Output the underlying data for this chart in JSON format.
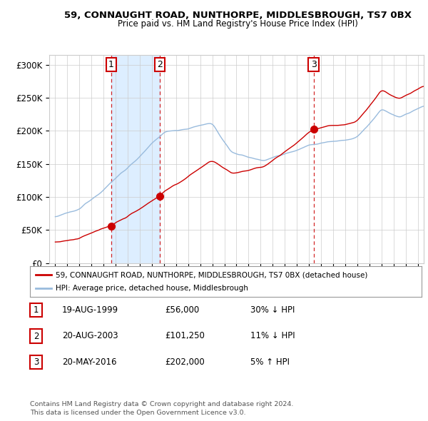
{
  "title": "59, CONNAUGHT ROAD, NUNTHORPE, MIDDLESBROUGH, TS7 0BX",
  "subtitle": "Price paid vs. HM Land Registry's House Price Index (HPI)",
  "ylabel_ticks": [
    "£0",
    "£50K",
    "£100K",
    "£150K",
    "£200K",
    "£250K",
    "£300K"
  ],
  "ytick_values": [
    0,
    50000,
    100000,
    150000,
    200000,
    250000,
    300000
  ],
  "ylim": [
    0,
    315000
  ],
  "xlim_start": 1994.5,
  "xlim_end": 2025.5,
  "sales": [
    {
      "date_num": 1999.63,
      "price": 56000,
      "label": "1"
    },
    {
      "date_num": 2003.63,
      "price": 101250,
      "label": "2"
    },
    {
      "date_num": 2016.38,
      "price": 202000,
      "label": "3"
    }
  ],
  "vline_dates": [
    1999.63,
    2003.63,
    2016.38
  ],
  "shade_regions": [
    [
      1999.63,
      2003.63
    ]
  ],
  "sale_color": "#cc0000",
  "hpi_color": "#99bbdd",
  "shade_color": "#ddeeff",
  "vline_color": "#cc0000",
  "legend_items": [
    "59, CONNAUGHT ROAD, NUNTHORPE, MIDDLESBROUGH, TS7 0BX (detached house)",
    "HPI: Average price, detached house, Middlesbrough"
  ],
  "table_rows": [
    {
      "num": "1",
      "date": "19-AUG-1999",
      "price": "£56,000",
      "hpi": "30% ↓ HPI"
    },
    {
      "num": "2",
      "date": "20-AUG-2003",
      "price": "£101,250",
      "hpi": "11% ↓ HPI"
    },
    {
      "num": "3",
      "date": "20-MAY-2016",
      "price": "£202,000",
      "hpi": "5% ↑ HPI"
    }
  ],
  "footnote": "Contains HM Land Registry data © Crown copyright and database right 2024.\nThis data is licensed under the Open Government Licence v3.0.",
  "background_color": "#ffffff",
  "grid_color": "#cccccc"
}
